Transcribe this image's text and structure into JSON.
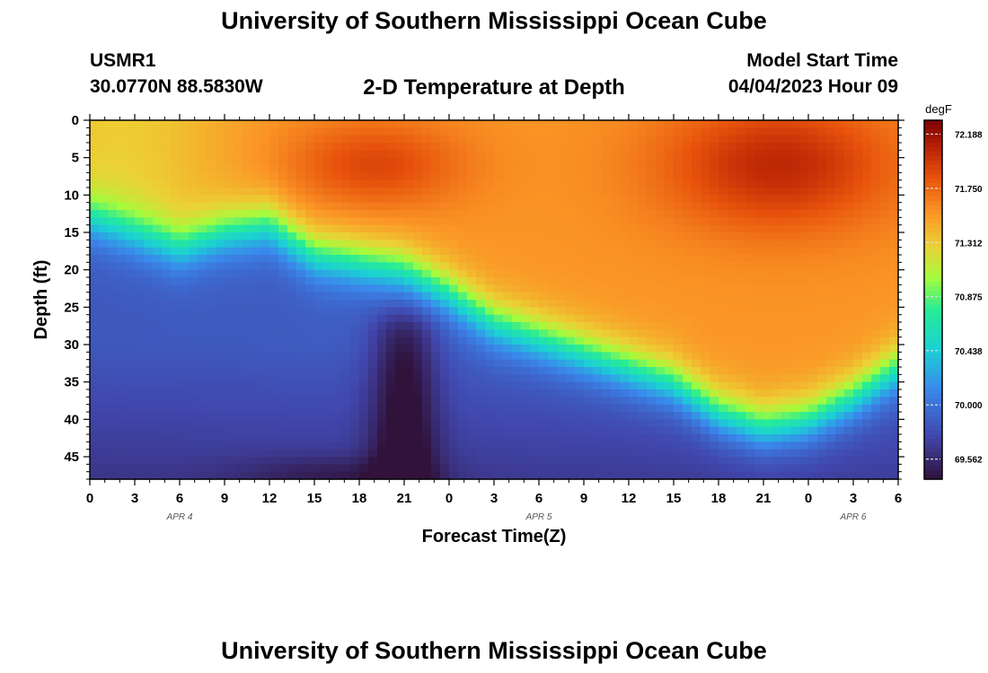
{
  "header": {
    "title": "University of Southern Mississippi Ocean Cube",
    "station_id": "USMR1",
    "coordinates": "30.0770N  88.5830W",
    "plot_title": "2-D Temperature at Depth",
    "model_start_label": "Model Start Time",
    "model_start_value": "04/04/2023 Hour 09"
  },
  "footer": {
    "title": "University of Southern Mississippi Ocean Cube"
  },
  "chart_data": {
    "type": "heatmap",
    "title": "2-D Temperature at Depth",
    "xlabel": "Forecast Time(Z)",
    "ylabel": "Depth (ft)",
    "colorbar_unit": "degF",
    "x_ticks": [
      "0",
      "3",
      "6",
      "9",
      "12",
      "15",
      "18",
      "21",
      "0",
      "3",
      "6",
      "9",
      "12",
      "15",
      "18",
      "21",
      "0",
      "3",
      "6"
    ],
    "x_range_hours": [
      0,
      54
    ],
    "date_labels": [
      {
        "text": "APR 4",
        "hour": 6
      },
      {
        "text": "APR 5",
        "hour": 30
      },
      {
        "text": "APR 6",
        "hour": 51
      }
    ],
    "y_ticks": [
      "0",
      "5",
      "10",
      "15",
      "20",
      "25",
      "30",
      "35",
      "40",
      "45"
    ],
    "y_range_ft": [
      0,
      48
    ],
    "colorbar_ticks": [
      "72.188",
      "71.750",
      "71.312",
      "70.875",
      "70.438",
      "70.000",
      "69.562"
    ],
    "value_range_degF": [
      69.4,
      72.3
    ],
    "thermocline": {
      "description": "depth (ft) of 70.6 degF isotherm vs forecast hour",
      "hours": [
        0,
        3,
        6,
        9,
        12,
        15,
        18,
        21,
        24,
        27,
        30,
        33,
        36,
        39,
        42,
        45,
        48,
        51,
        54
      ],
      "depth_ft": [
        13,
        15,
        17,
        15,
        14,
        18,
        19,
        20,
        23,
        27,
        29,
        31,
        33,
        35,
        39,
        41,
        40,
        37,
        33
      ]
    },
    "warm_core": {
      "hour": 46,
      "depth_ft": 6,
      "value_degF": 72.2
    },
    "cold_plume": {
      "hour": 21,
      "depth_ft": 33,
      "value_degF": 69.4
    }
  }
}
